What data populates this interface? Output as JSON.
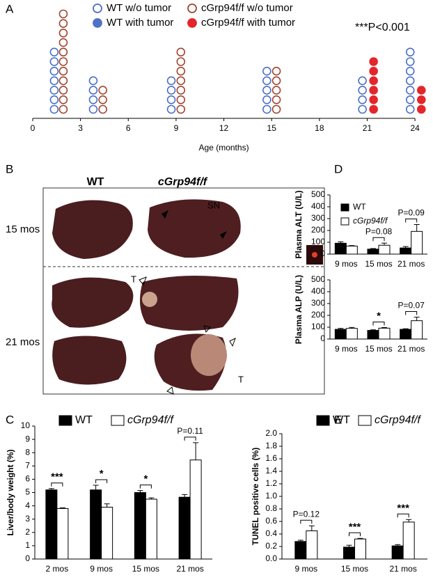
{
  "chart_data": [
    {
      "type": "dot",
      "panel": "A",
      "xlabel": "Age (months)",
      "annotation": "***P<0.001",
      "xlim": [
        0,
        25
      ],
      "xticks": [
        0,
        3,
        6,
        9,
        12,
        15,
        18,
        21,
        24
      ],
      "series": [
        {
          "name": "WT w/o tumor",
          "color": "#4a6fc7",
          "filled": false,
          "x": [
            1.35,
            3.8,
            8.7,
            14.7,
            20.7,
            23.7
          ],
          "values": [
            7,
            4,
            4,
            5,
            4,
            7
          ]
        },
        {
          "name": "WT with tumor",
          "color": "#4f72c5",
          "filled": true,
          "x": [],
          "values": []
        },
        {
          "name": "cGrp94f/f w/o tumor",
          "color": "#a0452f",
          "filled": false,
          "x": [
            1.92,
            4.4,
            9.3,
            15.3
          ],
          "values": [
            11,
            3,
            7,
            5
          ]
        },
        {
          "name": "cGrp94f/f with tumor",
          "color": "#e3262a",
          "filled": true,
          "x": [
            21.4,
            24.4
          ],
          "values": [
            6,
            3
          ]
        }
      ]
    },
    {
      "type": "bar",
      "panel": "C",
      "ylabel": "Liver/body weight (%)",
      "categories": [
        "2 mos",
        "9 mos",
        "15 mos",
        "21 mos"
      ],
      "ylim": [
        0,
        10
      ],
      "yticks": [
        0,
        1,
        2,
        3,
        4,
        5,
        6,
        7,
        8,
        9,
        10
      ],
      "significance": [
        "***",
        "*",
        "*",
        "P=0.11"
      ],
      "series": [
        {
          "name": "WT",
          "color": "#000000",
          "values": [
            5.2,
            5.2,
            5.0,
            4.65
          ],
          "errors": [
            0.1,
            0.35,
            0.15,
            0.2
          ]
        },
        {
          "name": "cGrp94f/f",
          "color": "#ffffff",
          "values": [
            3.8,
            3.9,
            4.5,
            7.45
          ],
          "errors": [
            0.05,
            0.25,
            0.1,
            1.3
          ]
        }
      ]
    },
    {
      "type": "bar",
      "panel": "D",
      "ylabel": "Plasma ALT (U/L)",
      "categories": [
        "9 mos",
        "15 mos",
        "21 mos"
      ],
      "ylim": [
        0,
        500
      ],
      "yticks": [
        0,
        100,
        200,
        300,
        400,
        500
      ],
      "significance": [
        null,
        "P=0.08",
        "P=0.09"
      ],
      "series": [
        {
          "name": "WT",
          "color": "#000000",
          "values": [
            92,
            42,
            52
          ],
          "errors": [
            12,
            5,
            12
          ]
        },
        {
          "name": "cGrp94f/f",
          "color": "#ffffff",
          "values": [
            68,
            75,
            192
          ],
          "errors": [
            4,
            18,
            58
          ]
        }
      ]
    },
    {
      "type": "bar",
      "ylabel": "Plasma ALP (U/L)",
      "categories": [
        "9 mos",
        "15 mos",
        "21 mos"
      ],
      "ylim": [
        0,
        500
      ],
      "yticks": [
        0,
        100,
        200,
        300,
        400,
        500
      ],
      "significance": [
        null,
        "*",
        "P=0.07"
      ],
      "series": [
        {
          "color": "#000000",
          "values": [
            82,
            73,
            82
          ],
          "errors": [
            8,
            5,
            5
          ]
        },
        {
          "color": "#ffffff",
          "values": [
            90,
            92,
            155
          ],
          "errors": [
            8,
            5,
            30
          ]
        }
      ]
    },
    {
      "type": "bar",
      "panel": "E",
      "ylabel": "TUNEL positive cells (%)",
      "categories": [
        "9 mos",
        "15 mos",
        "21 mos"
      ],
      "ylim": [
        0,
        2
      ],
      "yticks": [
        {
          "value": 0,
          "label": "0.0"
        },
        {
          "value": 0.2,
          "label": "0.2"
        },
        {
          "value": 0.4,
          "label": "0.4"
        },
        {
          "value": 0.6,
          "label": "0.6"
        },
        {
          "value": 0.8,
          "label": "0.8"
        },
        {
          "value": 1,
          "label": "1.0"
        },
        {
          "value": 1.2,
          "label": "1.2"
        },
        {
          "value": 1.4,
          "label": "1.4"
        },
        {
          "value": 1.6,
          "label": "1.6"
        },
        {
          "value": 1.8,
          "label": "1.8"
        },
        {
          "value": 2,
          "label": "2.0"
        }
      ],
      "significance": [
        "P=0.12",
        "***",
        "***"
      ],
      "series": [
        {
          "name": "WT",
          "color": "#000000",
          "values": [
            0.28,
            0.19,
            0.21
          ],
          "errors": [
            0.02,
            0.03,
            0.02
          ]
        },
        {
          "name": "cGrp94f/f",
          "color": "#ffffff",
          "values": [
            0.45,
            0.32,
            0.59
          ],
          "errors": [
            0.08,
            0.01,
            0.04
          ]
        }
      ]
    }
  ],
  "photo_panel": {
    "panel": "B",
    "columns": [
      "WT",
      "cGrp94f/f"
    ],
    "rows": [
      "15 mos",
      "21 mos"
    ],
    "labels": [
      "SN",
      "T",
      "T"
    ]
  }
}
